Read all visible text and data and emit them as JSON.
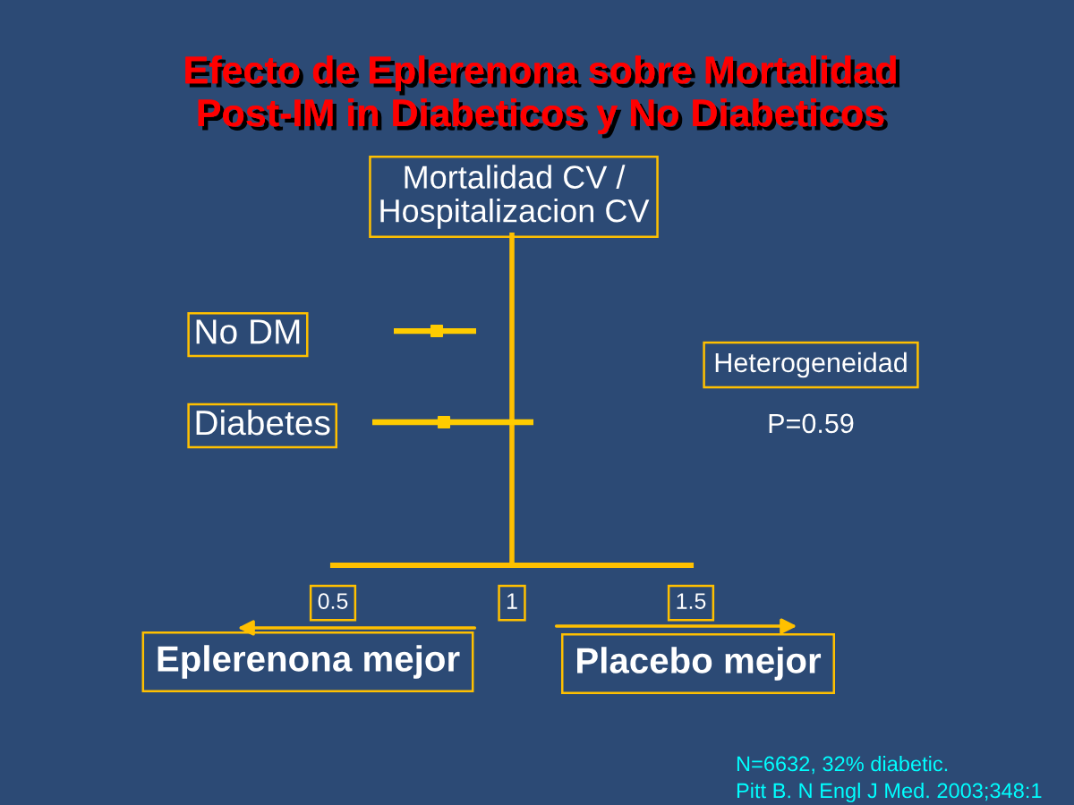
{
  "chart_data": {
    "type": "scatter",
    "title": "Efecto de Eplerenona sobre Mortalidad\nPost-IM in Diabeticos y No Diabeticos",
    "subtitle": "Mortalidad CV /\nHospitalizacion CV",
    "categories": [
      "No DM",
      "Diabetes"
    ],
    "orientation": "horizontal",
    "values": [
      0.79,
      0.81
    ],
    "errors": [
      [
        0.67,
        0.9
      ],
      [
        0.61,
        1.06
      ]
    ],
    "color": "#ffcc00",
    "marker": "square",
    "xlim": [
      0.5,
      1.5
    ],
    "xticks": [
      0.5,
      1,
      1.5
    ],
    "ref_lines": [
      {
        "axis": "x",
        "value": 1,
        "color": "#ffc000"
      }
    ],
    "annotations": [
      "Heterogeneidad",
      "P=0.59",
      "Eplerenona mejor",
      "Placebo mejor",
      "N=6632, 32% diabetic.",
      "Pitt B. N Engl J Med. 2003;348:1"
    ]
  }
}
